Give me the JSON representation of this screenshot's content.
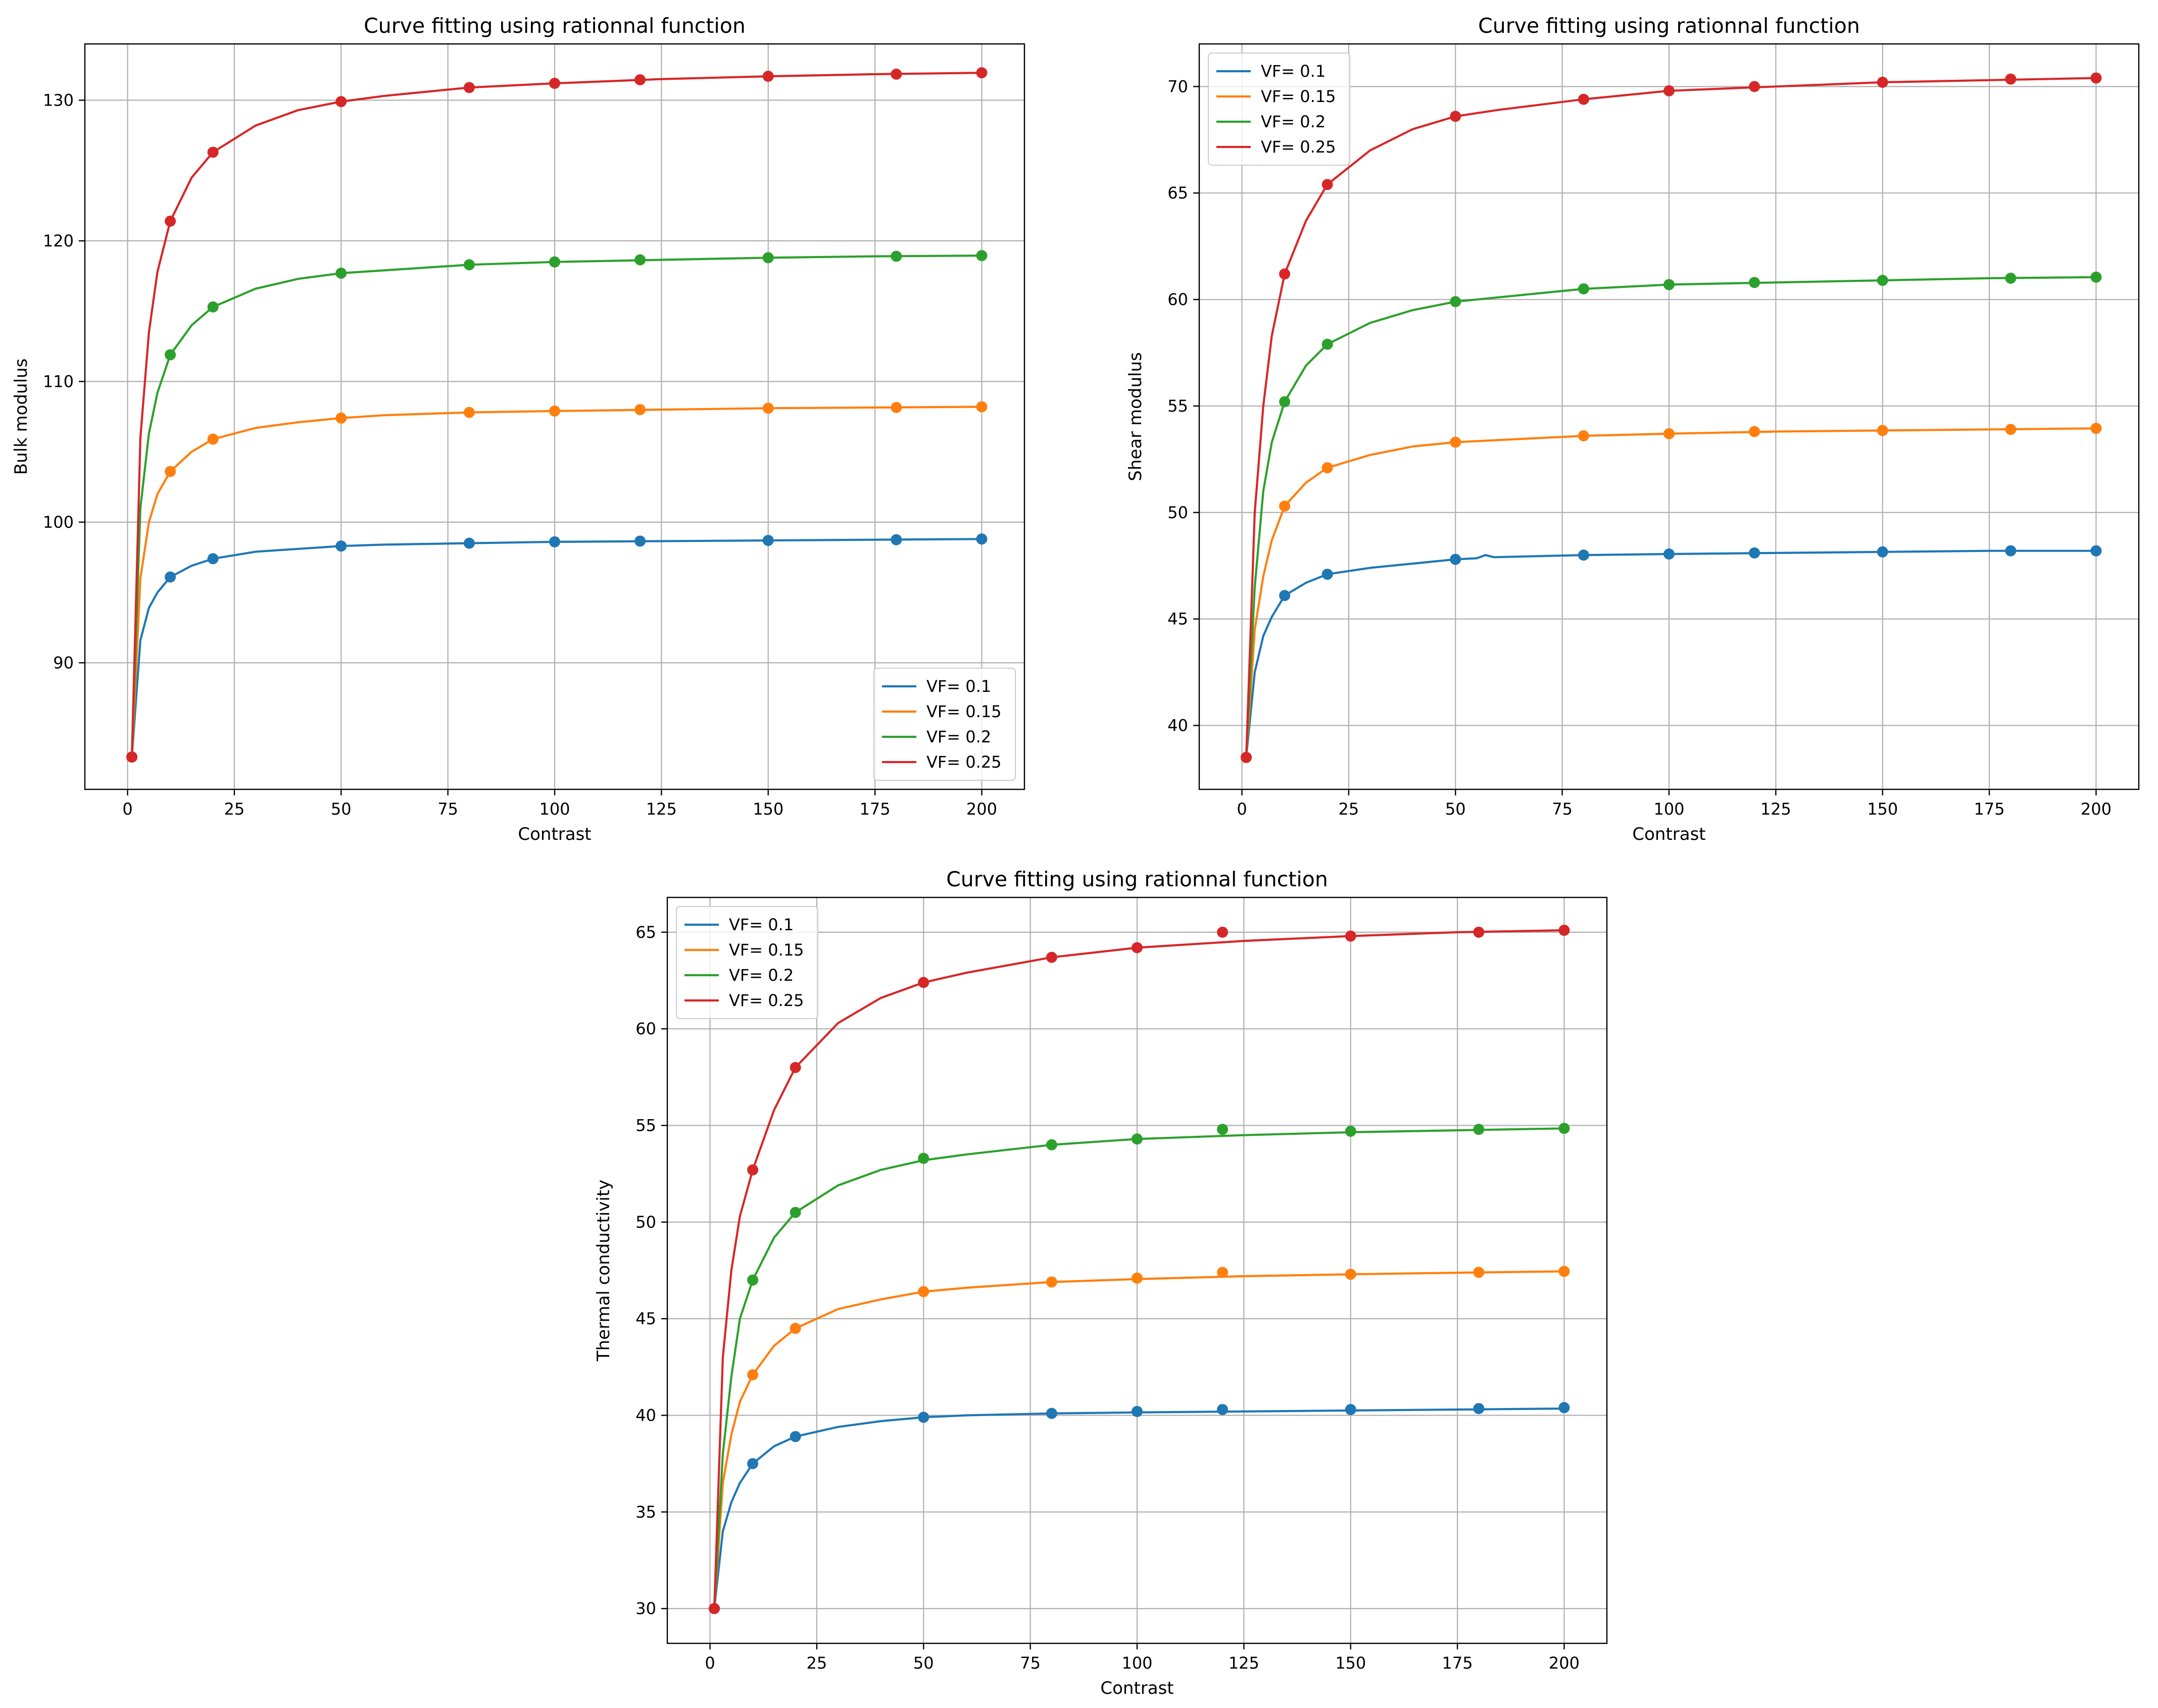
{
  "chart_data": [
    {
      "type": "line",
      "title": "Curve fitting using rationnal function",
      "xlabel": "Contrast",
      "ylabel": "Bulk modulus",
      "xlim": [
        -10,
        210
      ],
      "ylim": [
        81,
        134
      ],
      "xticks": [
        0,
        25,
        50,
        75,
        100,
        125,
        150,
        175,
        200
      ],
      "yticks": [
        90,
        100,
        110,
        120,
        130
      ],
      "grid": true,
      "legend_position": "lower-right",
      "series": [
        {
          "name": "VF= 0.1",
          "color": "#1f77b4",
          "points": {
            "x": [
              1,
              10,
              20,
              50,
              80,
              100,
              120,
              150,
              180,
              200
            ],
            "y": [
              83.3,
              96.1,
              97.4,
              98.3,
              98.5,
              98.6,
              98.65,
              98.7,
              98.75,
              98.8
            ]
          },
          "curve": {
            "x": [
              1,
              3,
              5,
              7,
              10,
              15,
              20,
              30,
              40,
              50,
              60,
              80,
              100,
              125,
              150,
              175,
              200
            ],
            "y": [
              83.3,
              91.6,
              93.9,
              95.0,
              96.1,
              96.9,
              97.4,
              97.9,
              98.1,
              98.3,
              98.4,
              98.5,
              98.6,
              98.65,
              98.7,
              98.75,
              98.8
            ]
          }
        },
        {
          "name": "VF= 0.15",
          "color": "#ff7f0e",
          "points": {
            "x": [
              1,
              10,
              20,
              50,
              80,
              100,
              120,
              150,
              180,
              200
            ],
            "y": [
              83.3,
              103.6,
              105.9,
              107.4,
              107.8,
              107.9,
              108.0,
              108.1,
              108.15,
              108.2
            ]
          },
          "curve": {
            "x": [
              1,
              3,
              5,
              7,
              10,
              15,
              20,
              30,
              40,
              50,
              60,
              80,
              100,
              125,
              150,
              175,
              200
            ],
            "y": [
              83.3,
              96.0,
              100.0,
              102.0,
              103.6,
              105.0,
              105.9,
              106.7,
              107.1,
              107.4,
              107.6,
              107.8,
              107.9,
              108.0,
              108.1,
              108.15,
              108.2
            ]
          }
        },
        {
          "name": "VF= 0.2",
          "color": "#2ca02c",
          "points": {
            "x": [
              1,
              10,
              20,
              50,
              80,
              100,
              120,
              150,
              180,
              200
            ],
            "y": [
              83.3,
              111.9,
              115.3,
              117.7,
              118.3,
              118.5,
              118.65,
              118.8,
              118.9,
              118.95
            ]
          },
          "curve": {
            "x": [
              1,
              3,
              5,
              7,
              10,
              15,
              20,
              30,
              40,
              50,
              60,
              80,
              100,
              125,
              150,
              175,
              200
            ],
            "y": [
              83.3,
              101.0,
              106.3,
              109.2,
              111.9,
              114.0,
              115.3,
              116.6,
              117.3,
              117.7,
              117.9,
              118.3,
              118.5,
              118.65,
              118.8,
              118.9,
              118.95
            ]
          }
        },
        {
          "name": "VF= 0.25",
          "color": "#d62728",
          "points": {
            "x": [
              1,
              10,
              20,
              50,
              80,
              100,
              120,
              150,
              180,
              200
            ],
            "y": [
              83.3,
              121.4,
              126.3,
              129.9,
              130.9,
              131.2,
              131.45,
              131.7,
              131.85,
              131.95
            ]
          },
          "curve": {
            "x": [
              1,
              3,
              5,
              7,
              10,
              15,
              20,
              30,
              40,
              50,
              60,
              80,
              100,
              125,
              150,
              175,
              200
            ],
            "y": [
              83.3,
              106.0,
              113.5,
              117.8,
              121.4,
              124.5,
              126.3,
              128.2,
              129.3,
              129.9,
              130.3,
              130.9,
              131.2,
              131.5,
              131.7,
              131.85,
              131.95
            ]
          }
        }
      ]
    },
    {
      "type": "line",
      "title": "Curve fitting using rationnal function",
      "xlabel": "Contrast",
      "ylabel": "Shear modulus",
      "xlim": [
        -10,
        210
      ],
      "ylim": [
        37,
        72
      ],
      "xticks": [
        0,
        25,
        50,
        75,
        100,
        125,
        150,
        175,
        200
      ],
      "yticks": [
        40,
        45,
        50,
        55,
        60,
        65,
        70
      ],
      "grid": true,
      "legend_position": "upper-left",
      "series": [
        {
          "name": "VF= 0.1",
          "color": "#1f77b4",
          "points": {
            "x": [
              1,
              10,
              20,
              50,
              80,
              100,
              120,
              150,
              180,
              200
            ],
            "y": [
              38.5,
              46.1,
              47.1,
              47.8,
              48.0,
              48.05,
              48.1,
              48.15,
              48.2,
              48.2
            ]
          },
          "curve": {
            "x": [
              1,
              3,
              5,
              7,
              10,
              15,
              20,
              30,
              40,
              50,
              55,
              57,
              59,
              80,
              100,
              125,
              150,
              175,
              200
            ],
            "y": [
              38.5,
              42.5,
              44.2,
              45.1,
              46.1,
              46.7,
              47.1,
              47.4,
              47.6,
              47.8,
              47.85,
              48.0,
              47.9,
              48.0,
              48.05,
              48.1,
              48.15,
              48.2,
              48.2
            ]
          }
        },
        {
          "name": "VF= 0.15",
          "color": "#ff7f0e",
          "points": {
            "x": [
              1,
              10,
              20,
              50,
              80,
              100,
              120,
              150,
              180,
              200
            ],
            "y": [
              38.5,
              50.3,
              52.1,
              53.3,
              53.6,
              53.7,
              53.8,
              53.85,
              53.9,
              53.95
            ]
          },
          "curve": {
            "x": [
              1,
              3,
              5,
              7,
              10,
              15,
              20,
              30,
              40,
              50,
              60,
              80,
              100,
              125,
              150,
              175,
              200
            ],
            "y": [
              38.5,
              44.5,
              47.0,
              48.7,
              50.3,
              51.4,
              52.1,
              52.7,
              53.1,
              53.3,
              53.4,
              53.6,
              53.7,
              53.8,
              53.85,
              53.9,
              53.95
            ]
          }
        },
        {
          "name": "VF= 0.2",
          "color": "#2ca02c",
          "points": {
            "x": [
              1,
              10,
              20,
              50,
              80,
              100,
              120,
              150,
              180,
              200
            ],
            "y": [
              38.5,
              55.2,
              57.9,
              59.9,
              60.5,
              60.7,
              60.8,
              60.9,
              61.0,
              61.05
            ]
          },
          "curve": {
            "x": [
              1,
              3,
              5,
              7,
              10,
              15,
              20,
              30,
              40,
              50,
              60,
              80,
              100,
              125,
              150,
              175,
              200
            ],
            "y": [
              38.5,
              46.5,
              51.0,
              53.3,
              55.2,
              56.9,
              57.9,
              58.9,
              59.5,
              59.9,
              60.1,
              60.5,
              60.7,
              60.8,
              60.9,
              61.0,
              61.05
            ]
          }
        },
        {
          "name": "VF= 0.25",
          "color": "#d62728",
          "points": {
            "x": [
              1,
              10,
              20,
              50,
              80,
              100,
              120,
              150,
              180,
              200
            ],
            "y": [
              38.5,
              61.2,
              65.4,
              68.6,
              69.4,
              69.8,
              70.0,
              70.2,
              70.35,
              70.4
            ]
          },
          "curve": {
            "x": [
              1,
              3,
              5,
              7,
              10,
              15,
              20,
              30,
              40,
              50,
              60,
              80,
              100,
              125,
              150,
              175,
              200
            ],
            "y": [
              38.5,
              50.0,
              55.0,
              58.3,
              61.2,
              63.7,
              65.4,
              67.0,
              68.0,
              68.6,
              68.9,
              69.4,
              69.8,
              70.0,
              70.2,
              70.3,
              70.4
            ]
          }
        }
      ]
    },
    {
      "type": "line",
      "title": "Curve fitting using rationnal function",
      "xlabel": "Contrast",
      "ylabel": "Thermal conductivity",
      "xlim": [
        -10,
        210
      ],
      "ylim": [
        28.2,
        66.8
      ],
      "xticks": [
        0,
        25,
        50,
        75,
        100,
        125,
        150,
        175,
        200
      ],
      "yticks": [
        30,
        35,
        40,
        45,
        50,
        55,
        60,
        65
      ],
      "grid": true,
      "legend_position": "upper-left",
      "series": [
        {
          "name": "VF= 0.1",
          "color": "#1f77b4",
          "points": {
            "x": [
              1,
              10,
              20,
              50,
              80,
              100,
              120,
              150,
              180,
              200
            ],
            "y": [
              30.0,
              37.5,
              38.9,
              39.9,
              40.1,
              40.2,
              40.3,
              40.3,
              40.35,
              40.4
            ]
          },
          "curve": {
            "x": [
              1,
              3,
              5,
              7,
              10,
              15,
              20,
              30,
              40,
              50,
              60,
              80,
              100,
              125,
              150,
              175,
              200
            ],
            "y": [
              30.0,
              34.0,
              35.5,
              36.5,
              37.5,
              38.4,
              38.9,
              39.4,
              39.7,
              39.9,
              40.0,
              40.1,
              40.15,
              40.2,
              40.25,
              40.3,
              40.35
            ]
          }
        },
        {
          "name": "VF= 0.15",
          "color": "#ff7f0e",
          "points": {
            "x": [
              1,
              10,
              20,
              50,
              80,
              100,
              120,
              150,
              180,
              200
            ],
            "y": [
              30.0,
              42.1,
              44.5,
              46.4,
              46.9,
              47.1,
              47.4,
              47.3,
              47.4,
              47.45
            ]
          },
          "curve": {
            "x": [
              1,
              3,
              5,
              7,
              10,
              15,
              20,
              30,
              40,
              50,
              60,
              80,
              100,
              125,
              150,
              175,
              200
            ],
            "y": [
              30.0,
              36.5,
              39.0,
              40.7,
              42.1,
              43.6,
              44.5,
              45.5,
              46.0,
              46.4,
              46.6,
              46.9,
              47.05,
              47.2,
              47.3,
              47.38,
              47.45
            ]
          }
        },
        {
          "name": "VF= 0.2",
          "color": "#2ca02c",
          "points": {
            "x": [
              1,
              10,
              20,
              50,
              80,
              100,
              120,
              150,
              180,
              200
            ],
            "y": [
              30.0,
              47.0,
              50.5,
              53.3,
              54.0,
              54.3,
              54.8,
              54.7,
              54.8,
              54.85
            ]
          },
          "curve": {
            "x": [
              1,
              3,
              5,
              7,
              10,
              15,
              20,
              30,
              40,
              50,
              60,
              80,
              100,
              125,
              150,
              175,
              200
            ],
            "y": [
              30.0,
              38.0,
              42.0,
              45.0,
              47.0,
              49.2,
              50.5,
              51.9,
              52.7,
              53.2,
              53.5,
              54.0,
              54.3,
              54.5,
              54.65,
              54.75,
              54.85
            ]
          }
        },
        {
          "name": "VF= 0.25",
          "color": "#d62728",
          "points": {
            "x": [
              1,
              10,
              20,
              50,
              80,
              100,
              120,
              150,
              180,
              200
            ],
            "y": [
              30.0,
              52.7,
              58.0,
              62.4,
              63.7,
              64.2,
              65.0,
              64.8,
              65.0,
              65.1
            ]
          },
          "curve": {
            "x": [
              1,
              3,
              5,
              7,
              10,
              15,
              20,
              30,
              40,
              50,
              60,
              80,
              100,
              125,
              150,
              175,
              200
            ],
            "y": [
              30.0,
              43.0,
              47.5,
              50.3,
              52.7,
              55.8,
              58.0,
              60.3,
              61.6,
              62.4,
              62.9,
              63.7,
              64.2,
              64.55,
              64.8,
              65.0,
              65.1
            ]
          }
        }
      ]
    }
  ]
}
